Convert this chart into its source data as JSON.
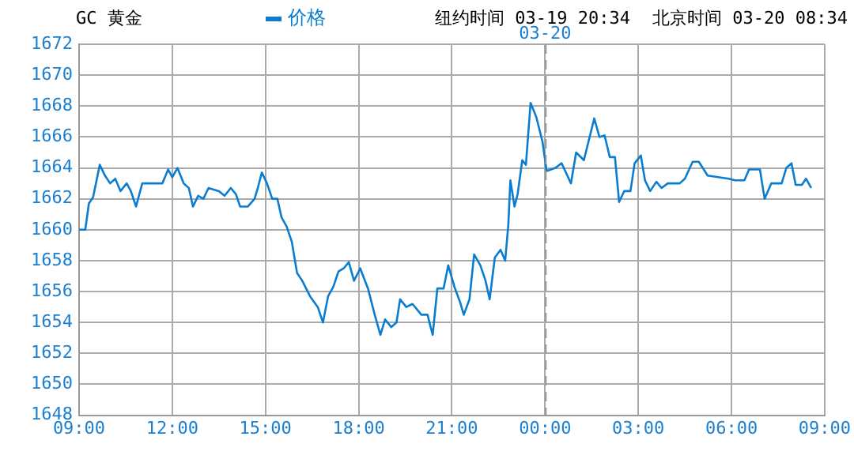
{
  "chart_data": {
    "type": "line",
    "title": "GC 黄金",
    "annotations": [
      "纽约时间 03-19 20:34",
      "北京时间 03-20 08:34"
    ],
    "series": [
      {
        "name": "价格",
        "color": "#0a7dd0",
        "x": [
          "--03-19T09:00",
          "--03-19T09:12",
          "--03-19T09:19",
          "--03-19T09:27",
          "--03-19T09:40",
          "--03-19T09:50",
          "--03-19T10:00",
          "--03-19T10:10",
          "--03-19T10:20",
          "--03-19T10:32",
          "--03-19T10:40",
          "--03-19T10:50",
          "--03-19T11:02",
          "--03-19T11:17",
          "--03-19T11:41",
          "--03-19T11:52",
          "--03-19T12:00",
          "--03-19T12:10",
          "--03-19T12:22",
          "--03-19T12:32",
          "--03-19T12:40",
          "--03-19T12:50",
          "--03-19T13:00",
          "--03-19T13:10",
          "--03-19T13:30",
          "--03-19T13:41",
          "--03-19T13:53",
          "--03-19T14:03",
          "--03-19T14:11",
          "--03-19T14:26",
          "--03-19T14:39",
          "--03-19T14:46",
          "--03-19T14:53",
          "--03-19T15:03",
          "--03-19T15:13",
          "--03-19T15:23",
          "--03-19T15:31",
          "--03-19T15:41",
          "--03-19T15:51",
          "--03-19T16:01",
          "--03-19T16:11",
          "--03-19T16:26",
          "--03-19T16:41",
          "--03-19T16:51",
          "--03-19T17:01",
          "--03-19T17:11",
          "--03-19T17:21",
          "--03-19T17:31",
          "--03-19T17:41",
          "--03-19T17:51",
          "--03-19T18:03",
          "--03-19T18:11",
          "--03-19T18:18",
          "--03-19T18:31",
          "--03-19T18:42",
          "--03-19T18:51",
          "--03-19T19:03",
          "--03-19T19:13",
          "--03-19T19:20",
          "--03-19T19:32",
          "--03-19T19:44",
          "--03-19T20:01",
          "--03-19T20:13",
          "--03-19T20:19",
          "--03-19T20:23",
          "--03-19T20:32",
          "--03-19T20:44",
          "--03-19T20:53",
          "--03-19T21:05",
          "--03-19T21:16",
          "--03-19T21:23",
          "--03-19T21:34",
          "--03-19T21:43",
          "--03-19T21:55",
          "--03-19T22:05",
          "--03-19T22:13",
          "--03-19T22:23",
          "--03-19T22:34",
          "--03-19T22:43",
          "--03-19T22:49",
          "--03-19T22:53",
          "--03-19T23:01",
          "--03-19T23:07",
          "--03-19T23:16",
          "--03-19T23:23",
          "--03-19T23:32",
          "--03-19T23:43",
          "--03-19T23:55",
          "--03-20T00:03",
          "--03-20T00:20",
          "--03-20T00:32",
          "--03-20T00:43",
          "--03-20T00:50",
          "--03-20T01:00",
          "--03-20T01:15",
          "--03-20T01:35",
          "--03-20T01:45",
          "--03-20T01:55",
          "--03-20T02:05",
          "--03-20T02:15",
          "--03-20T02:23",
          "--03-20T02:33",
          "--03-20T02:45",
          "--03-20T02:53",
          "--03-20T03:05",
          "--03-20T03:13",
          "--03-20T03:23",
          "--03-20T03:35",
          "--03-20T03:45",
          "--03-20T03:57",
          "--03-20T04:20",
          "--03-20T04:30",
          "--03-20T04:45",
          "--03-20T04:57",
          "--03-20T05:14",
          "--03-20T05:55",
          "--03-20T06:07",
          "--03-20T06:25",
          "--03-20T06:34",
          "--03-20T06:55",
          "--03-20T07:04",
          "--03-20T07:17",
          "--03-20T07:37",
          "--03-20T07:46",
          "--03-20T07:56",
          "--03-20T08:04",
          "--03-20T08:16",
          "--03-20T08:24",
          "--03-20T08:34"
        ],
        "values": [
          1660.0,
          1660.0,
          1661.7,
          1662.1,
          1664.2,
          1663.5,
          1663.0,
          1663.3,
          1662.5,
          1663.0,
          1662.5,
          1661.5,
          1663.0,
          1663.0,
          1663.0,
          1663.9,
          1663.4,
          1664.0,
          1663.0,
          1662.7,
          1661.5,
          1662.2,
          1662.0,
          1662.7,
          1662.5,
          1662.2,
          1662.7,
          1662.3,
          1661.5,
          1661.5,
          1662.0,
          1662.8,
          1663.7,
          1663.0,
          1662.0,
          1662.0,
          1660.8,
          1660.2,
          1659.2,
          1657.2,
          1656.7,
          1655.7,
          1655.0,
          1654.0,
          1655.7,
          1656.3,
          1657.3,
          1657.5,
          1657.9,
          1656.7,
          1657.5,
          1656.8,
          1656.2,
          1654.5,
          1653.2,
          1654.2,
          1653.7,
          1654.0,
          1655.5,
          1655.0,
          1655.2,
          1654.5,
          1654.5,
          1653.7,
          1653.2,
          1656.2,
          1656.2,
          1657.7,
          1656.3,
          1655.3,
          1654.5,
          1655.5,
          1658.4,
          1657.7,
          1656.7,
          1655.5,
          1658.2,
          1658.7,
          1658.0,
          1660.3,
          1663.2,
          1661.5,
          1662.3,
          1664.5,
          1664.2,
          1668.2,
          1667.3,
          1665.7,
          1663.8,
          1664.0,
          1664.3,
          1663.5,
          1663.0,
          1665.0,
          1664.5,
          1667.2,
          1666.0,
          1666.1,
          1664.7,
          1664.7,
          1661.8,
          1662.5,
          1662.5,
          1664.3,
          1664.8,
          1663.2,
          1662.5,
          1663.1,
          1662.7,
          1663.0,
          1663.0,
          1663.3,
          1664.4,
          1664.4,
          1663.5,
          1663.3,
          1663.2,
          1663.2,
          1663.9,
          1663.9,
          1662.0,
          1663.0,
          1663.0,
          1664.0,
          1664.3,
          1662.9,
          1662.9,
          1663.3,
          1662.7
        ]
      }
    ],
    "xlim": [
      "--03-19T09:00",
      "--03-20T09:00"
    ],
    "xticks": [
      {
        "value": "--03-19T09:00",
        "label": "09:00"
      },
      {
        "value": "--03-19T12:00",
        "label": "12:00"
      },
      {
        "value": "--03-19T15:00",
        "label": "15:00"
      },
      {
        "value": "--03-19T18:00",
        "label": "18:00"
      },
      {
        "value": "--03-19T21:00",
        "label": "21:00"
      },
      {
        "value": "--03-20T00:00",
        "label": "00:00"
      },
      {
        "value": "--03-20T03:00",
        "label": "03:00"
      },
      {
        "value": "--03-20T06:00",
        "label": "06:00"
      },
      {
        "value": "--03-20T09:00",
        "label": "09:00"
      }
    ],
    "ylim": [
      1648,
      1672
    ],
    "yticks": [
      1648,
      1650,
      1652,
      1654,
      1656,
      1658,
      1660,
      1662,
      1664,
      1666,
      1668,
      1670,
      1672
    ],
    "ref_lines": [
      {
        "axis": "x",
        "value": "--03-20T00:00",
        "label": "03-20",
        "line_style": "dashed",
        "color": "#999999"
      }
    ],
    "grid": true,
    "legend": "top",
    "marker": "none"
  }
}
